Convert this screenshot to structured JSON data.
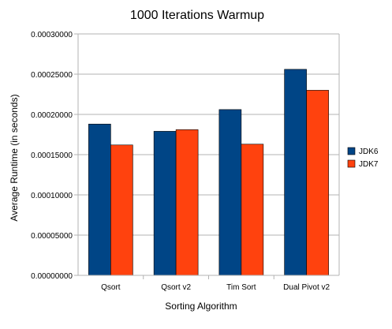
{
  "chart_data": {
    "type": "bar",
    "title": "1000 Iterations Warmup",
    "xlabel": "Sorting Algorithm",
    "ylabel": "Average Runtime (in seconds)",
    "categories": [
      "Qsort",
      "Qsort v2",
      "Tim Sort",
      "Dual Pivot v2"
    ],
    "series": [
      {
        "name": "JDK6",
        "color": "#004586",
        "values": [
          0.000188,
          0.000179,
          0.000206,
          0.000256
        ]
      },
      {
        "name": "JDK7",
        "color": "#ff420e",
        "values": [
          0.000162,
          0.000181,
          0.000163,
          0.00023
        ]
      }
    ],
    "ylim": [
      0,
      0.0003
    ],
    "yticks": [
      "0.00000000",
      "0.00005000",
      "0.00010000",
      "0.00015000",
      "0.00020000",
      "0.00025000",
      "0.00030000"
    ],
    "grid": true,
    "legend_position": "right"
  }
}
